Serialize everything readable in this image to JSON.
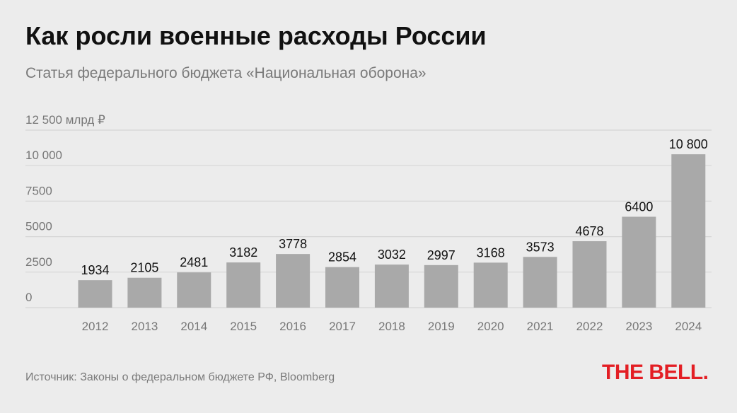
{
  "header": {
    "title": "Как росли военные расходы России",
    "subtitle": "Статья федерального бюджета «Национальная оборона»"
  },
  "chart_data": {
    "type": "bar",
    "categories": [
      "2012",
      "2013",
      "2014",
      "2015",
      "2016",
      "2017",
      "2018",
      "2019",
      "2020",
      "2021",
      "2022",
      "2023",
      "2024"
    ],
    "values": [
      1934,
      2105,
      2481,
      3182,
      3778,
      2854,
      3032,
      2997,
      3168,
      3573,
      4678,
      6400,
      10800
    ],
    "value_labels": [
      "1934",
      "2105",
      "2481",
      "3182",
      "3778",
      "2854",
      "3032",
      "2997",
      "3168",
      "3573",
      "4678",
      "6400",
      "10 800"
    ],
    "ylim": [
      0,
      12500
    ],
    "yticks": [
      0,
      2500,
      5000,
      7500,
      10000,
      12500
    ],
    "ytick_labels": [
      "0",
      "2500",
      "5000",
      "7500",
      "10 000",
      "12 500 млрд ₽"
    ],
    "grid": true,
    "bar_color": "#a9a9a9",
    "grid_color": "#d6d6d6"
  },
  "footer": {
    "source": "Источник: Законы о федеральном бюджете РФ, Bloomberg",
    "logo": "THE BELL."
  },
  "colors": {
    "background": "#ececec",
    "brand": "#e31e24"
  }
}
